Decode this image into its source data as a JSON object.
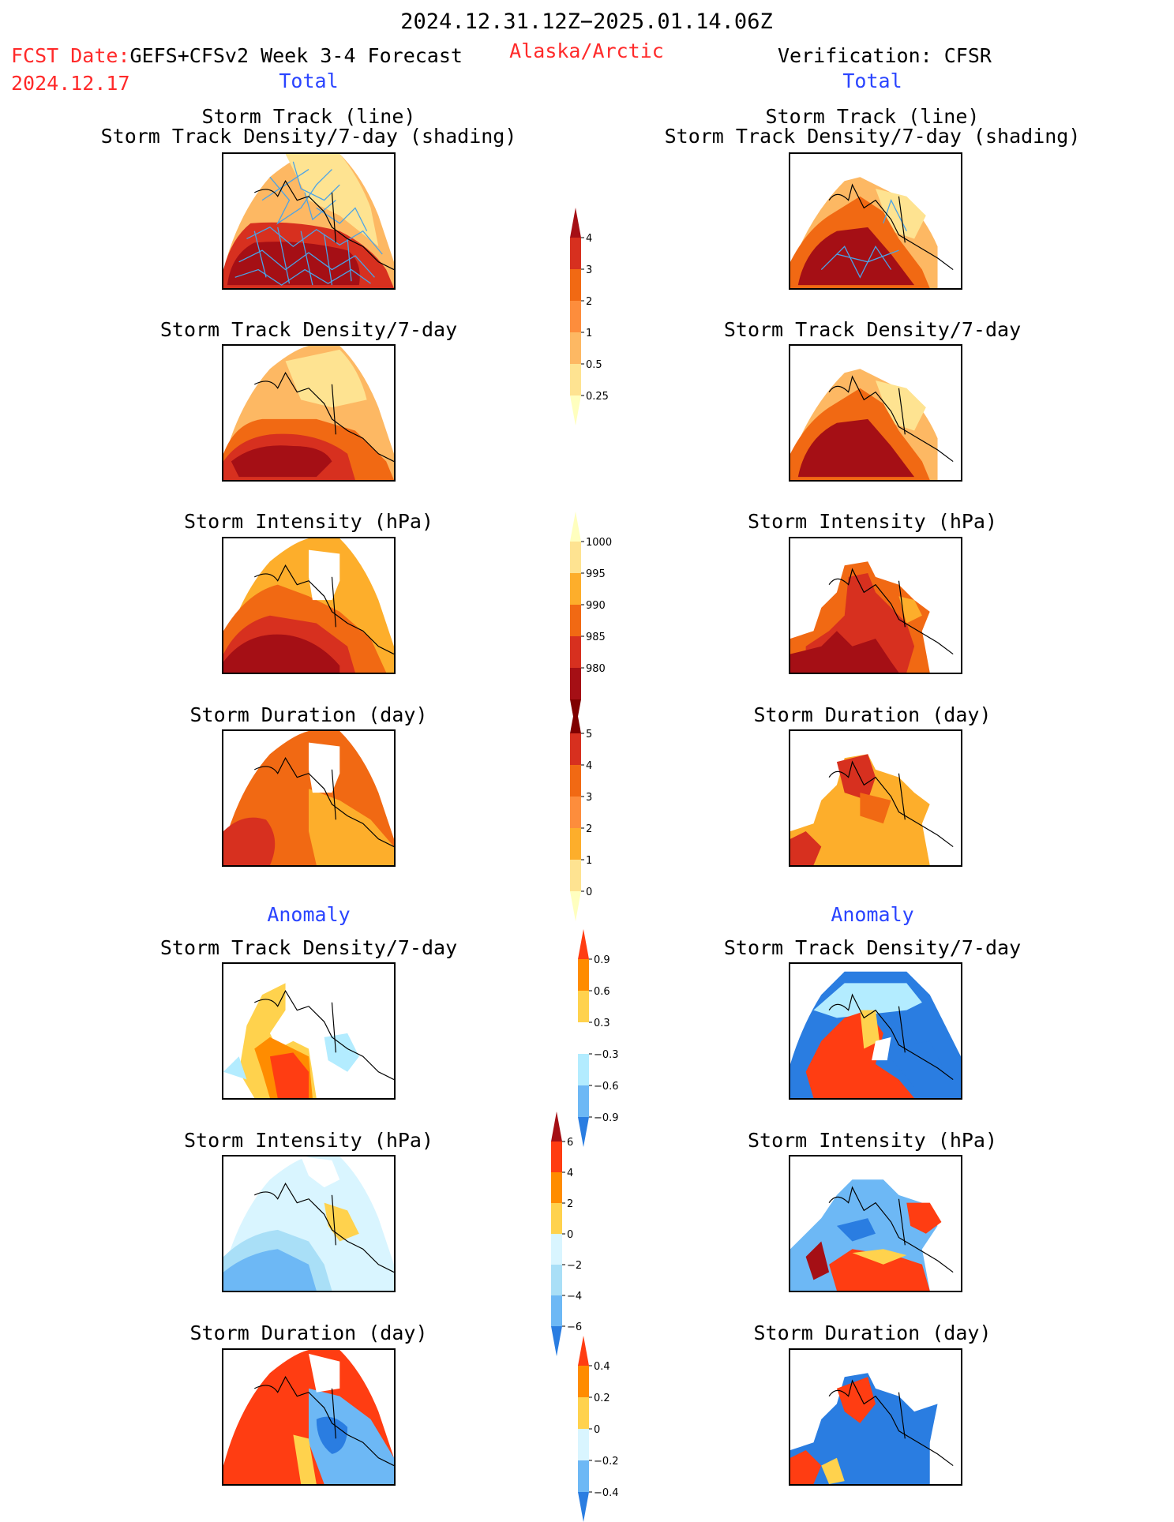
{
  "header": {
    "date_range": "2024.12.31.12Z−2025.01.14.06Z",
    "fcst_label": "FCST Date:",
    "forecast_title": "GEFS+CFSv2 Week 3-4 Forecast",
    "region": "Alaska/Arctic",
    "verification": "Verification: CFSR",
    "fcst_date": "2024.12.17"
  },
  "sections": {
    "total": "Total",
    "anomaly": "Anomaly"
  },
  "panel_titles": {
    "track_line": "Storm Track (line)",
    "track_shading": "Storm Track Density/7-day (shading)",
    "density": "Storm Track Density/7-day",
    "intensity": "Storm Intensity (hPa)",
    "duration": "Storm Duration (day)"
  },
  "colorbars": {
    "density_total": {
      "labels": [
        "4",
        "3",
        "2",
        "1",
        "0.5",
        "0.25"
      ],
      "colors": [
        "#a50f15",
        "#d7301f",
        "#f16913",
        "#fd8d3c",
        "#fdb863",
        "#fee391",
        "#ffffbf"
      ]
    },
    "intensity_total": {
      "labels": [
        "1000",
        "995",
        "990",
        "985",
        "980"
      ],
      "colors": [
        "#ffffbf",
        "#fee391",
        "#fdae2b",
        "#f16913",
        "#d7301f",
        "#a50f15",
        "#7f0000"
      ]
    },
    "duration_total": {
      "labels": [
        "5",
        "4",
        "3",
        "2",
        "1",
        "0"
      ],
      "colors": [
        "#7f0000",
        "#d7301f",
        "#f16913",
        "#fd8d3c",
        "#fdae2b",
        "#fee391",
        "#ffffbf"
      ]
    },
    "density_anom": {
      "labels": [
        "0.9",
        "0.6",
        "0.3",
        "−0.3",
        "−0.6",
        "−0.9"
      ],
      "colors": [
        "#ff3d12",
        "#ff8c00",
        "#ffd24d",
        "#ffffff",
        "#b3ecff",
        "#6db8f5",
        "#2a7de1"
      ]
    },
    "intensity_anom": {
      "labels": [
        "6",
        "4",
        "2",
        "0",
        "−2",
        "−4",
        "−6"
      ],
      "colors": [
        "#a50f15",
        "#ff3d12",
        "#ff8c00",
        "#ffd24d",
        "#d9f5ff",
        "#a9dff7",
        "#6db8f5",
        "#2a7de1"
      ]
    },
    "duration_anom": {
      "labels": [
        "0.4",
        "0.2",
        "0",
        "−0.2",
        "−0.4"
      ],
      "colors": [
        "#ff3d12",
        "#ff8c00",
        "#ffd24d",
        "#d9f5ff",
        "#6db8f5",
        "#2a7de1"
      ]
    }
  }
}
